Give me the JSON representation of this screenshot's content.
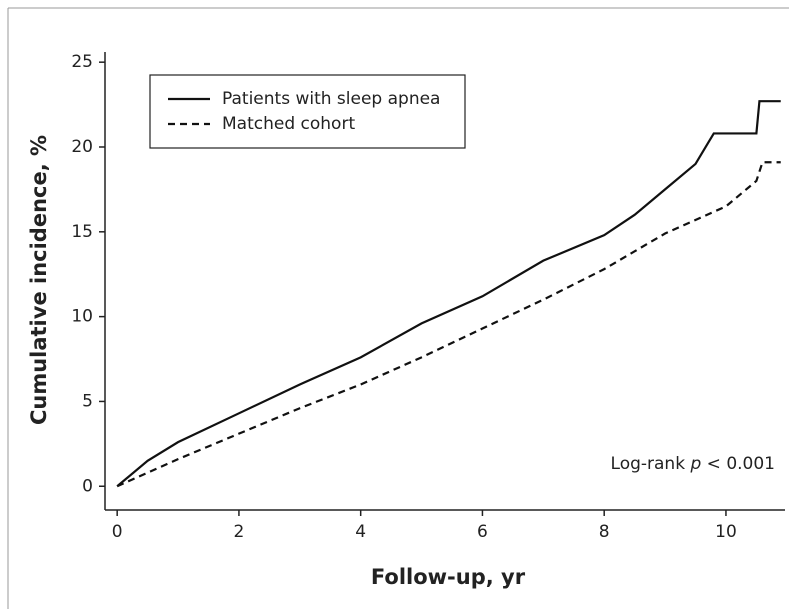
{
  "chart_data": {
    "type": "line",
    "x_label": "Follow-up, yr",
    "y_label": "Cumulative incidence, %",
    "annotation": {
      "text": "Log-rank",
      "italic": "p",
      "rest": "< 0.001"
    },
    "xlim": [
      -0.2,
      10.97
    ],
    "ylim": [
      -1.4,
      25.6
    ],
    "xticks": [
      0,
      2,
      4,
      6,
      8,
      10
    ],
    "yticks": [
      0,
      5,
      10,
      15,
      20,
      25
    ],
    "legend": "top-left",
    "series": [
      {
        "name": "Patients with sleep apnea",
        "color": "#111111",
        "dash": "solid",
        "x": [
          0,
          0.5,
          1,
          2,
          3,
          4,
          5,
          6,
          7,
          8,
          8.5,
          9,
          9.5,
          9.7,
          9.8,
          10.5,
          10.55,
          10.9
        ],
        "values": [
          0,
          1.5,
          2.6,
          4.3,
          6.0,
          7.6,
          9.6,
          11.2,
          13.3,
          14.8,
          16.0,
          17.5,
          19.0,
          20.2,
          20.8,
          20.8,
          22.7,
          22.7
        ]
      },
      {
        "name": "Matched cohort",
        "color": "#111111",
        "dash": "dashed",
        "x": [
          0,
          1,
          2,
          3,
          4,
          5,
          6,
          7,
          8,
          9,
          10,
          10.5,
          10.6,
          10.9
        ],
        "values": [
          0,
          1.6,
          3.1,
          4.6,
          6.0,
          7.6,
          9.3,
          11.0,
          12.8,
          14.9,
          16.5,
          18.0,
          19.1,
          19.1
        ]
      }
    ]
  }
}
